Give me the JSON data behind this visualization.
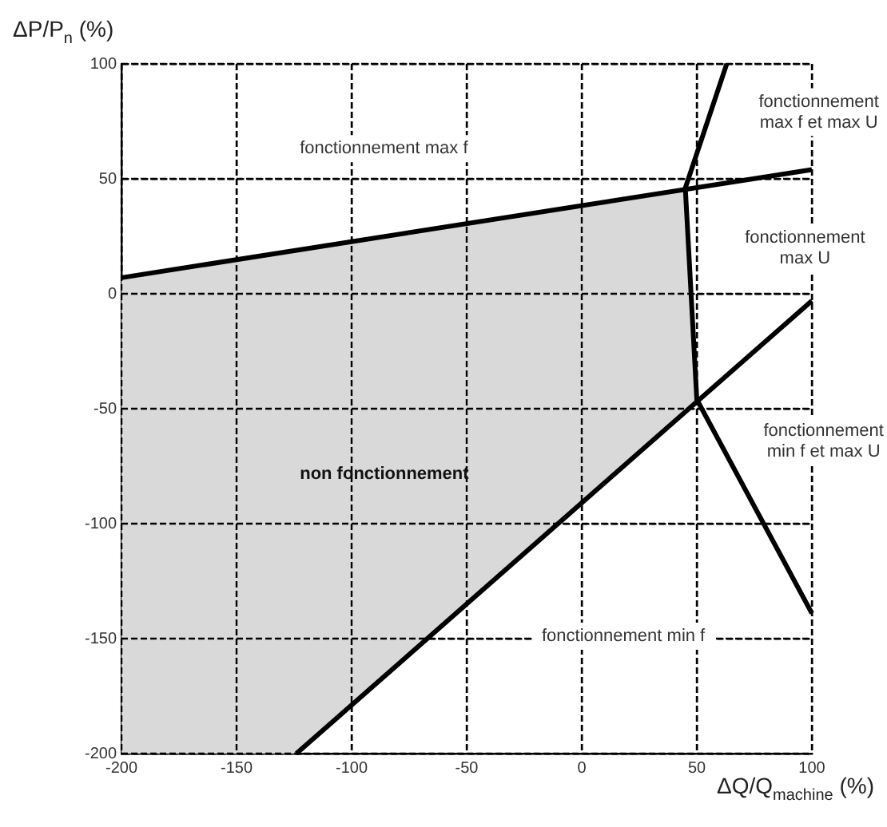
{
  "chart_data": {
    "type": "line",
    "xlabel": "ΔQ/Q$_{machine}$ (%)",
    "ylabel": "ΔP/P$_{n}$ (%)",
    "xlim": [
      -200,
      100
    ],
    "ylim": [
      -200,
      100
    ],
    "xticks": [
      -200,
      -150,
      -100,
      -50,
      0,
      50,
      100
    ],
    "yticks": [
      -200,
      -150,
      -100,
      -50,
      0,
      50,
      100
    ],
    "grid": true,
    "line_style": "solid",
    "marker": "none",
    "series": [
      {
        "type": "area",
        "name": "non fonctionnement",
        "color": "#d9d9d9",
        "x": [
          -200,
          45,
          50,
          -124,
          -200
        ],
        "values": [
          7,
          46,
          -46,
          -200,
          -200
        ]
      },
      {
        "color": "#000000",
        "x": [
          -200,
          100
        ],
        "values": [
          7,
          54
        ]
      },
      {
        "color": "#000000",
        "x": [
          63,
          45,
          50,
          100
        ],
        "values": [
          100,
          46,
          -46,
          -139
        ]
      },
      {
        "color": "#000000",
        "x": [
          -124,
          100
        ],
        "values": [
          -200,
          -3
        ]
      }
    ],
    "annotations": [
      "fonctionnement max f",
      "fonctionnement\nmax f et max U",
      "fonctionnement\nmax U",
      "fonctionnement\nmin f et max U",
      "fonctionnement min f"
    ]
  }
}
